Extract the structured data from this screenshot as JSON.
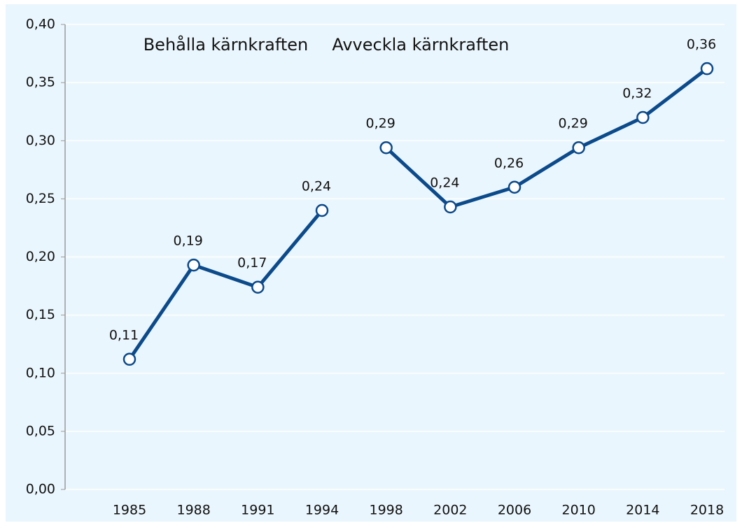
{
  "chart_data": {
    "type": "line",
    "categories": [
      "1985",
      "1988",
      "1991",
      "1994",
      "1998",
      "2002",
      "2006",
      "2010",
      "2014",
      "2018"
    ],
    "series": [
      {
        "name": "Behålla kärnkraften",
        "color": "#0b4a8b",
        "values": [
          0.112,
          0.193,
          0.174,
          0.24,
          null,
          null,
          null,
          null,
          null,
          null
        ],
        "value_labels": [
          "0,11",
          "0,19",
          "0,17",
          "0,24",
          null,
          null,
          null,
          null,
          null,
          null
        ]
      },
      {
        "name": "Avveckla kärnkraften",
        "color": "#0b4a8b",
        "values": [
          null,
          null,
          null,
          null,
          0.294,
          0.243,
          0.26,
          0.294,
          0.32,
          0.362
        ],
        "value_labels": [
          null,
          null,
          null,
          null,
          "0,29",
          "0,24",
          "0,26",
          "0,29",
          "0,32",
          "0,36"
        ]
      }
    ],
    "ylim": [
      0,
      0.4
    ],
    "yticks": [
      {
        "value": 0,
        "label": "0,00"
      },
      {
        "value": 0.05,
        "label": "0,05"
      },
      {
        "value": 0.1,
        "label": "0,10"
      },
      {
        "value": 0.15,
        "label": "0,15"
      },
      {
        "value": 0.2,
        "label": "0,20"
      },
      {
        "value": 0.25,
        "label": "0,25"
      },
      {
        "value": 0.3,
        "label": "0,30"
      },
      {
        "value": 0.35,
        "label": "0,35"
      },
      {
        "value": 0.4,
        "label": "0,40"
      }
    ],
    "grid": true
  }
}
